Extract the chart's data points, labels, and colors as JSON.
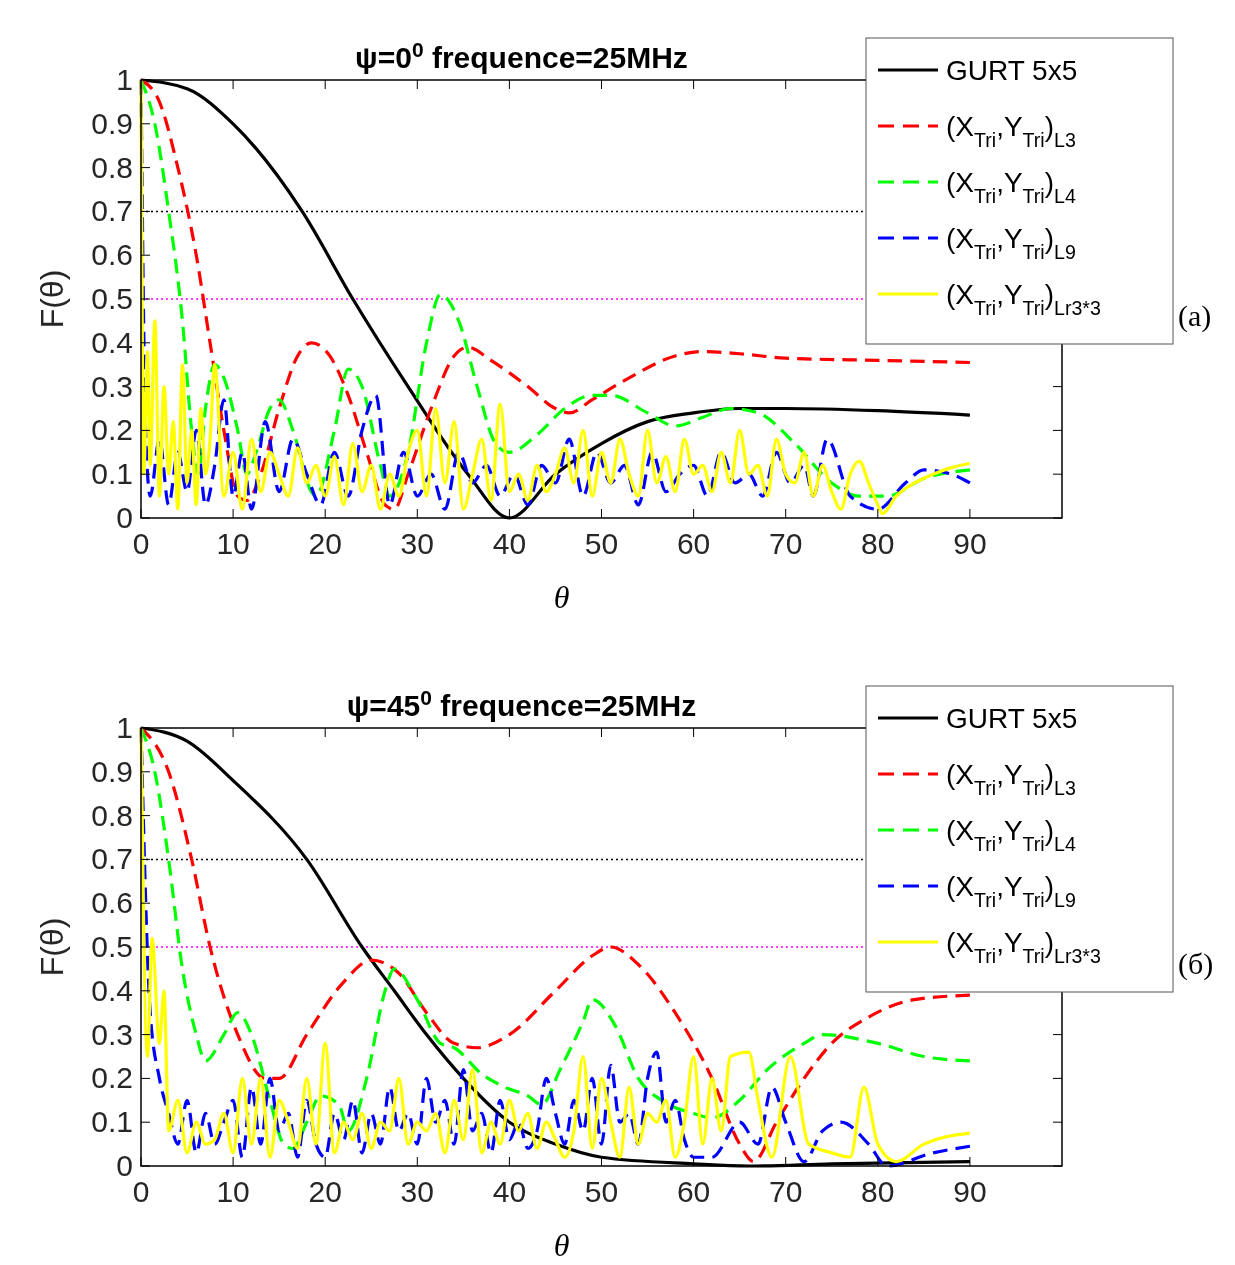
{
  "chart_data": [
    {
      "type": "line",
      "title": "ψ=0$^{0}$   frequence=25MHz",
      "xlabel": "θ",
      "ylabel": "F(θ)",
      "xlim": [
        0,
        100
      ],
      "ylim": [
        0,
        1
      ],
      "xticks": [
        0,
        10,
        20,
        30,
        40,
        50,
        60,
        70,
        80,
        90
      ],
      "yticks": [
        0,
        0.1,
        0.2,
        0.3,
        0.4,
        0.5,
        0.6,
        0.7,
        0.8,
        0.9,
        1
      ],
      "legend": "top right",
      "annotations": [
        "(a)"
      ],
      "ref_lines": [
        {
          "axis": "y",
          "value": 0.7,
          "color": "#000000",
          "line_style": "dotted"
        },
        {
          "axis": "y",
          "value": 0.5,
          "color": "#ff00ff",
          "line_style": "dotted"
        }
      ],
      "series": [
        {
          "name": "GURT 5x5",
          "color": "#000000",
          "line_style": "solid",
          "x": [
            0,
            5,
            10,
            17.5,
            23,
            29,
            35.5,
            40,
            45,
            50,
            55,
            60,
            65,
            70,
            80,
            90
          ],
          "values": [
            1,
            0.98,
            0.9,
            0.7,
            0.5,
            0.3,
            0.1,
            0,
            0.1,
            0.17,
            0.22,
            0.24,
            0.25,
            0.25,
            0.245,
            0.235
          ]
        },
        {
          "name": "(X$_{Tri}$,Y$_{Tri}$)$_{L3}$",
          "color": "#ff0000",
          "line_style": "dashed",
          "x": [
            0,
            2,
            4,
            6,
            7.5,
            9,
            10.5,
            11.5,
            13,
            15,
            17,
            18.5,
            20.5,
            22.5,
            24.5,
            26.5,
            27.5,
            29,
            31.5,
            34,
            35.5,
            38,
            42,
            45,
            46.5,
            49,
            53,
            58,
            61,
            65,
            70,
            80,
            90
          ],
          "values": [
            1,
            0.95,
            0.8,
            0.6,
            0.4,
            0.2,
            0.05,
            0.04,
            0.1,
            0.25,
            0.37,
            0.4,
            0.37,
            0.28,
            0.15,
            0.03,
            0.02,
            0.1,
            0.25,
            0.37,
            0.39,
            0.36,
            0.3,
            0.25,
            0.24,
            0.27,
            0.32,
            0.37,
            0.38,
            0.375,
            0.365,
            0.36,
            0.355
          ]
        },
        {
          "name": "(X$_{Tri}$,Y$_{Tri}$)$_{L4}$",
          "color": "#00ff00",
          "line_style": "dashed",
          "x": [
            0,
            1.5,
            3,
            4.5,
            5.5,
            6.2,
            7,
            8,
            9,
            10.5,
            11.5,
            12.5,
            14,
            15,
            16.5,
            18.5,
            19,
            21,
            22.5,
            24,
            26,
            27,
            29,
            31,
            32.5,
            34.5,
            36.5,
            38.5,
            40,
            43,
            46,
            49,
            51,
            55,
            58,
            61,
            64,
            67,
            71,
            75,
            78,
            81,
            85,
            90
          ],
          "values": [
            1,
            0.9,
            0.7,
            0.45,
            0.2,
            0.1,
            0.25,
            0.35,
            0.32,
            0.2,
            0.1,
            0.15,
            0.25,
            0.27,
            0.2,
            0.06,
            0.05,
            0.2,
            0.34,
            0.3,
            0.12,
            0.05,
            0.15,
            0.4,
            0.51,
            0.45,
            0.3,
            0.17,
            0.15,
            0.19,
            0.25,
            0.28,
            0.28,
            0.24,
            0.21,
            0.23,
            0.25,
            0.24,
            0.17,
            0.08,
            0.05,
            0.05,
            0.09,
            0.11
          ]
        },
        {
          "name": "(X$_{Tri}$,Y$_{Tri}$)$_{L9}$",
          "color": "#0000ff",
          "line_style": "dashed",
          "x": [
            0,
            0.5,
            1,
            2,
            3,
            4,
            5,
            6,
            7,
            8,
            9,
            10,
            11,
            12,
            13.5,
            15,
            16.5,
            18,
            19.5,
            21,
            22.5,
            24,
            25.5,
            27,
            28.5,
            30,
            31.5,
            33,
            34.5,
            36,
            37.5,
            39,
            40.5,
            42,
            43.5,
            45,
            46.5,
            48,
            49.5,
            51,
            52.5,
            54,
            55.5,
            57,
            58.5,
            60,
            61.5,
            63,
            64.5,
            66,
            67.5,
            69,
            70.5,
            72,
            73,
            74.5,
            77,
            80,
            83,
            85,
            88,
            90
          ],
          "values": [
            1,
            0.2,
            0.05,
            0.18,
            0.03,
            0.15,
            0.06,
            0.2,
            0.03,
            0.12,
            0.27,
            0.05,
            0.15,
            0.02,
            0.22,
            0.06,
            0.18,
            0.1,
            0.03,
            0.15,
            0.05,
            0.2,
            0.28,
            0.03,
            0.15,
            0.05,
            0.1,
            0.02,
            0.15,
            0.08,
            0.12,
            0.05,
            0.1,
            0.03,
            0.12,
            0.08,
            0.18,
            0.05,
            0.15,
            0.08,
            0.12,
            0.03,
            0.15,
            0.06,
            0.1,
            0.12,
            0.05,
            0.15,
            0.08,
            0.1,
            0.05,
            0.15,
            0.08,
            0.12,
            0.05,
            0.18,
            0.05,
            0.02,
            0.08,
            0.11,
            0.1,
            0.08
          ]
        },
        {
          "name": "(X$_{Tri}$,Y$_{Tri}$)$_{Lr3*3}$",
          "color": "#ffff00",
          "line_style": "solid",
          "x": [
            0,
            0.3,
            0.7,
            1,
            1.5,
            2,
            2.5,
            3,
            3.5,
            4,
            4.5,
            5,
            5.5,
            6,
            6.5,
            7,
            7.5,
            8,
            9,
            10,
            11,
            12,
            13,
            14,
            15,
            16,
            17,
            18,
            19,
            20,
            21,
            22,
            23,
            24,
            25,
            26,
            27,
            28,
            29,
            30,
            31,
            32,
            33,
            34,
            35,
            36,
            37,
            38,
            39,
            40,
            41,
            42,
            43,
            44,
            45,
            46,
            47,
            48,
            49,
            50,
            51,
            52,
            53,
            54,
            55,
            56,
            57,
            58,
            59,
            60,
            61,
            62,
            63,
            64,
            65,
            66,
            67,
            68,
            69,
            70,
            71,
            72,
            73,
            74,
            75,
            76,
            77,
            78,
            79,
            80,
            80.5,
            82,
            84,
            86,
            88,
            90
          ],
          "values": [
            1,
            0.1,
            0.38,
            0.12,
            0.45,
            0.05,
            0.3,
            0.1,
            0.22,
            0.02,
            0.35,
            0.08,
            0.2,
            0.03,
            0.25,
            0.1,
            0.18,
            0.35,
            0.05,
            0.15,
            0.02,
            0.18,
            0.06,
            0.15,
            0.1,
            0.05,
            0.16,
            0.08,
            0.12,
            0.05,
            0.14,
            0.03,
            0.17,
            0.06,
            0.12,
            0.02,
            0.1,
            0.05,
            0.15,
            0.2,
            0.05,
            0.25,
            0.08,
            0.22,
            0.02,
            0.1,
            0.18,
            0.04,
            0.26,
            0.06,
            0.1,
            0.04,
            0.12,
            0.06,
            0.1,
            0.16,
            0.08,
            0.2,
            0.05,
            0.15,
            0.08,
            0.18,
            0.1,
            0.05,
            0.2,
            0.08,
            0.14,
            0.06,
            0.18,
            0.1,
            0.12,
            0.06,
            0.15,
            0.08,
            0.2,
            0.1,
            0.12,
            0.05,
            0.18,
            0.1,
            0.08,
            0.15,
            0.05,
            0.12,
            0.06,
            0.02,
            0.1,
            0.13,
            0.08,
            0.03,
            0.01,
            0.05,
            0.08,
            0.1,
            0.115,
            0.125
          ]
        }
      ]
    },
    {
      "type": "line",
      "title": "ψ=45$^{0}$   frequence=25MHz",
      "xlabel": "θ",
      "ylabel": "F(θ)",
      "xlim": [
        0,
        100
      ],
      "ylim": [
        0,
        1
      ],
      "xticks": [
        0,
        10,
        20,
        30,
        40,
        50,
        60,
        70,
        80,
        90
      ],
      "yticks": [
        0,
        0.1,
        0.2,
        0.3,
        0.4,
        0.5,
        0.6,
        0.7,
        0.8,
        0.9,
        1
      ],
      "legend": "top right",
      "annotations": [
        "(б)"
      ],
      "ref_lines": [
        {
          "axis": "y",
          "value": 0.7,
          "color": "#000000",
          "line_style": "dotted"
        },
        {
          "axis": "y",
          "value": 0.5,
          "color": "#ff00ff",
          "line_style": "dotted"
        }
      ],
      "series": [
        {
          "name": "GURT 5x5",
          "color": "#000000",
          "line_style": "solid",
          "x": [
            0,
            5,
            10,
            18,
            24,
            27.5,
            31,
            35,
            40,
            45,
            50,
            60,
            66,
            75,
            90
          ],
          "values": [
            1,
            0.97,
            0.88,
            0.7,
            0.5,
            0.4,
            0.3,
            0.2,
            0.1,
            0.05,
            0.02,
            0.005,
            0,
            0.005,
            0.01
          ]
        },
        {
          "name": "(X$_{Tri}$,Y$_{Tri}$)$_{L3}$",
          "color": "#ff0000",
          "line_style": "dashed",
          "x": [
            0,
            3,
            5.5,
            7.5,
            10.5,
            13.5,
            15,
            18,
            22,
            25,
            28,
            31,
            34,
            36.5,
            40,
            45,
            49,
            51,
            54,
            58,
            62,
            65,
            66.5,
            69,
            72,
            75,
            79,
            84,
            90
          ],
          "values": [
            1,
            0.9,
            0.7,
            0.5,
            0.3,
            0.2,
            0.2,
            0.3,
            0.42,
            0.47,
            0.44,
            0.35,
            0.28,
            0.27,
            0.3,
            0.4,
            0.48,
            0.5,
            0.46,
            0.35,
            0.2,
            0.05,
            0.01,
            0.1,
            0.2,
            0.28,
            0.34,
            0.38,
            0.39
          ]
        },
        {
          "name": "(X$_{Tri}$,Y$_{Tri}$)$_{L4}$",
          "color": "#00ff00",
          "line_style": "dashed",
          "x": [
            0,
            1.5,
            3,
            4.5,
            6,
            7,
            9,
            10.5,
            12,
            14,
            15.5,
            16.5,
            18,
            19.5,
            21.5,
            22.5,
            24.5,
            26.5,
            27.5,
            30,
            32.5,
            34,
            37,
            39.5,
            42,
            43.5,
            45.5,
            48,
            49,
            51.5,
            54,
            56.5,
            60,
            62,
            65,
            68,
            72,
            74,
            80,
            85,
            90
          ],
          "values": [
            1,
            0.9,
            0.7,
            0.45,
            0.3,
            0.24,
            0.3,
            0.35,
            0.3,
            0.15,
            0.05,
            0.04,
            0.1,
            0.16,
            0.14,
            0.08,
            0.2,
            0.4,
            0.45,
            0.38,
            0.28,
            0.27,
            0.21,
            0.18,
            0.16,
            0.14,
            0.22,
            0.33,
            0.38,
            0.32,
            0.2,
            0.15,
            0.12,
            0.11,
            0.15,
            0.22,
            0.28,
            0.3,
            0.28,
            0.25,
            0.24
          ]
        },
        {
          "name": "(X$_{Tri}$,Y$_{Tri}$)$_{L9}$",
          "color": "#0000ff",
          "line_style": "dashed",
          "x": [
            0,
            1,
            2,
            3,
            4,
            5,
            6,
            7,
            8,
            9,
            10,
            11,
            12,
            13,
            14,
            15,
            16,
            17,
            18,
            19,
            20,
            21,
            22,
            23,
            24,
            25,
            26,
            27,
            28,
            29,
            30,
            31,
            32,
            33,
            34,
            35,
            36,
            37,
            38,
            39,
            40,
            41,
            42,
            43,
            44,
            45,
            46,
            47,
            48,
            49,
            50,
            51,
            52,
            53,
            54,
            55,
            56,
            57,
            58,
            59,
            60,
            62,
            65,
            67,
            68.5,
            70,
            72,
            74,
            76,
            79,
            81,
            86,
            90
          ],
          "values": [
            1,
            0.35,
            0.2,
            0.12,
            0.05,
            0.15,
            0.03,
            0.12,
            0.05,
            0.1,
            0.15,
            0.02,
            0.18,
            0.05,
            0.2,
            0.08,
            0.12,
            0.02,
            0.15,
            0.05,
            0.02,
            0.12,
            0.06,
            0.15,
            0.03,
            0.12,
            0.05,
            0.18,
            0.08,
            0.12,
            0.05,
            0.2,
            0.1,
            0.15,
            0.05,
            0.22,
            0.08,
            0.12,
            0.03,
            0.15,
            0.06,
            0.1,
            0.04,
            0.08,
            0.2,
            0.12,
            0.05,
            0.15,
            0.08,
            0.2,
            0.05,
            0.23,
            0.1,
            0.12,
            0.05,
            0.2,
            0.26,
            0.1,
            0.15,
            0.06,
            0.02,
            0.02,
            0.1,
            0.05,
            0.18,
            0.1,
            0.01,
            0.08,
            0.1,
            0.05,
            0,
            0.03,
            0.045
          ]
        },
        {
          "name": "(X$_{Tri}$,Y$_{Tri}$)$_{Lr3*3}$",
          "color": "#ffff00",
          "line_style": "solid",
          "x": [
            0,
            0.7,
            1.2,
            2,
            2.5,
            3,
            4,
            5,
            6,
            7,
            8,
            9,
            10,
            11,
            12,
            13,
            14,
            15,
            16,
            17,
            18,
            19,
            20,
            21,
            22,
            23,
            24,
            25,
            26,
            27,
            28,
            29,
            30,
            31,
            32,
            33,
            34,
            35,
            36,
            37,
            38,
            39,
            40,
            41,
            42,
            43,
            44,
            45,
            46,
            47,
            48,
            49,
            50,
            51,
            52,
            53,
            54,
            55,
            56,
            57,
            58,
            59,
            60,
            61,
            62,
            63,
            64,
            66,
            67,
            68.5,
            70.5,
            72.5,
            75,
            77,
            78.5,
            80,
            82,
            85,
            90
          ],
          "values": [
            1,
            0.25,
            0.52,
            0.28,
            0.4,
            0.08,
            0.15,
            0.03,
            0.1,
            0.05,
            0.06,
            0.12,
            0.03,
            0.2,
            0.05,
            0.2,
            0.02,
            0.15,
            0.1,
            0.04,
            0.2,
            0.05,
            0.28,
            0.03,
            0.1,
            0.06,
            0.12,
            0.04,
            0.1,
            0.08,
            0.2,
            0.05,
            0.1,
            0.08,
            0.12,
            0.03,
            0.15,
            0.06,
            0.22,
            0.03,
            0.1,
            0.05,
            0.15,
            0.08,
            0.12,
            0.04,
            0.1,
            0.06,
            0.02,
            0.08,
            0.25,
            0.04,
            0.2,
            0.1,
            0.02,
            0.18,
            0.05,
            0.12,
            0.1,
            0.15,
            0.02,
            0.1,
            0.25,
            0.05,
            0.2,
            0.08,
            0.25,
            0.26,
            0.15,
            0.02,
            0.25,
            0.05,
            0.03,
            0.02,
            0.18,
            0.05,
            0.01,
            0.05,
            0.075
          ]
        }
      ]
    }
  ]
}
